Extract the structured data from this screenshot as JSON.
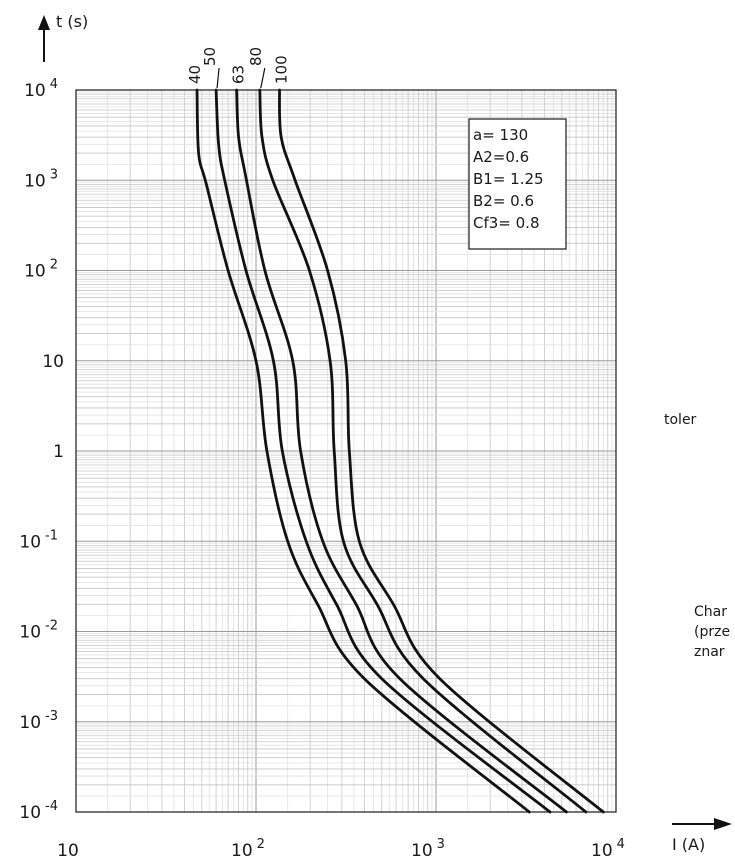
{
  "chart_data": {
    "type": "line",
    "title": "",
    "xlabel": "I (A)",
    "ylabel": "t (s)",
    "xscale": "log",
    "yscale": "log",
    "xlim": [
      10,
      10000
    ],
    "ylim": [
      0.0001,
      10000
    ],
    "grid": true,
    "x_ticks": [
      {
        "base": "10",
        "exp": ""
      },
      {
        "base": "10",
        "exp": "2"
      },
      {
        "base": "10",
        "exp": "3"
      },
      {
        "base": "10",
        "exp": "4"
      }
    ],
    "y_ticks": [
      {
        "base": "10",
        "exp": "-4"
      },
      {
        "base": "10",
        "exp": "-3"
      },
      {
        "base": "10",
        "exp": "-2"
      },
      {
        "base": "10",
        "exp": "-1"
      },
      {
        "base": "1",
        "exp": ""
      },
      {
        "base": "10",
        "exp": ""
      },
      {
        "base": "10",
        "exp": "2"
      },
      {
        "base": "10",
        "exp": "3"
      },
      {
        "base": "10",
        "exp": "4"
      }
    ],
    "parameters": [
      "a= 130",
      "A2=0.6",
      "B1= 1.25",
      "B2= 0.6",
      "Cf3= 0.8"
    ],
    "series": [
      {
        "name": "40",
        "points": [
          [
            47,
            10000
          ],
          [
            48,
            2000
          ],
          [
            53,
            900
          ],
          [
            70,
            100
          ],
          [
            100,
            10
          ],
          [
            115,
            1
          ],
          [
            150,
            0.1
          ],
          [
            220,
            0.02
          ],
          [
            400,
            0.003
          ],
          [
            3300,
            0.0001
          ]
        ]
      },
      {
        "name": "50",
        "points": [
          [
            60,
            10000
          ],
          [
            62,
            2500
          ],
          [
            67,
            1000
          ],
          [
            88,
            100
          ],
          [
            125,
            10
          ],
          [
            140,
            1
          ],
          [
            190,
            0.1
          ],
          [
            280,
            0.02
          ],
          [
            500,
            0.003
          ],
          [
            4300,
            0.0001
          ]
        ]
      },
      {
        "name": "63",
        "points": [
          [
            78,
            10000
          ],
          [
            80,
            3000
          ],
          [
            87,
            1200
          ],
          [
            112,
            100
          ],
          [
            160,
            10
          ],
          [
            177,
            1
          ],
          [
            235,
            0.1
          ],
          [
            360,
            0.02
          ],
          [
            630,
            0.003
          ],
          [
            5300,
            0.0001
          ]
        ]
      },
      {
        "name": "80",
        "points": [
          [
            105,
            10000
          ],
          [
            108,
            3000
          ],
          [
            124,
            1000
          ],
          [
            198,
            100
          ],
          [
            258,
            10
          ],
          [
            272,
            1
          ],
          [
            306,
            0.1
          ],
          [
            470,
            0.02
          ],
          [
            850,
            0.003
          ],
          [
            6800,
            0.0001
          ]
        ]
      },
      {
        "name": "100",
        "points": [
          [
            135,
            10000
          ],
          [
            138,
            3000
          ],
          [
            165,
            1000
          ],
          [
            250,
            100
          ],
          [
            315,
            10
          ],
          [
            330,
            1
          ],
          [
            375,
            0.1
          ],
          [
            580,
            0.02
          ],
          [
            1050,
            0.003
          ],
          [
            8500,
            0.0001
          ]
        ]
      }
    ]
  },
  "side_text": {
    "tolerance": "toler",
    "line1": "Char",
    "line2": "(prze",
    "line3": "znar"
  }
}
